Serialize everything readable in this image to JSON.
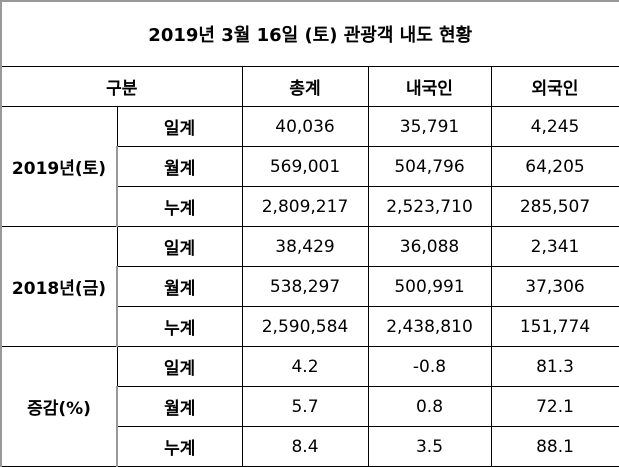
{
  "title": "2019년 3월 16일 (토) 관광객 내도 현황",
  "headers": [
    "구분",
    "총계",
    "내국인",
    "외국인"
  ],
  "groups": [
    {
      "label": "2019년(토)",
      "rows": [
        {
          "label": "일계",
          "values": [
            "40,036",
            "35,791",
            "4,245"
          ]
        },
        {
          "label": "월계",
          "values": [
            "569,001",
            "504,796",
            "64,205"
          ]
        },
        {
          "label": "누계",
          "values": [
            "2,809,217",
            "2,523,710",
            "285,507"
          ]
        }
      ]
    },
    {
      "label": "2018년(금)",
      "rows": [
        {
          "label": "일계",
          "values": [
            "38,429",
            "36,088",
            "2,341"
          ]
        },
        {
          "label": "월계",
          "values": [
            "538,297",
            "500,991",
            "37,306"
          ]
        },
        {
          "label": "누계",
          "values": [
            "2,590,584",
            "2,438,810",
            "151,774"
          ]
        }
      ]
    },
    {
      "label": "증감(%)",
      "rows": [
        {
          "label": "일계",
          "values": [
            "4.2",
            "-0.8",
            "81.3"
          ]
        },
        {
          "label": "월계",
          "values": [
            "5.7",
            "0.8",
            "72.1"
          ]
        },
        {
          "label": "누계",
          "values": [
            "8.4",
            "3.5",
            "88.1"
          ]
        }
      ]
    }
  ]
}
